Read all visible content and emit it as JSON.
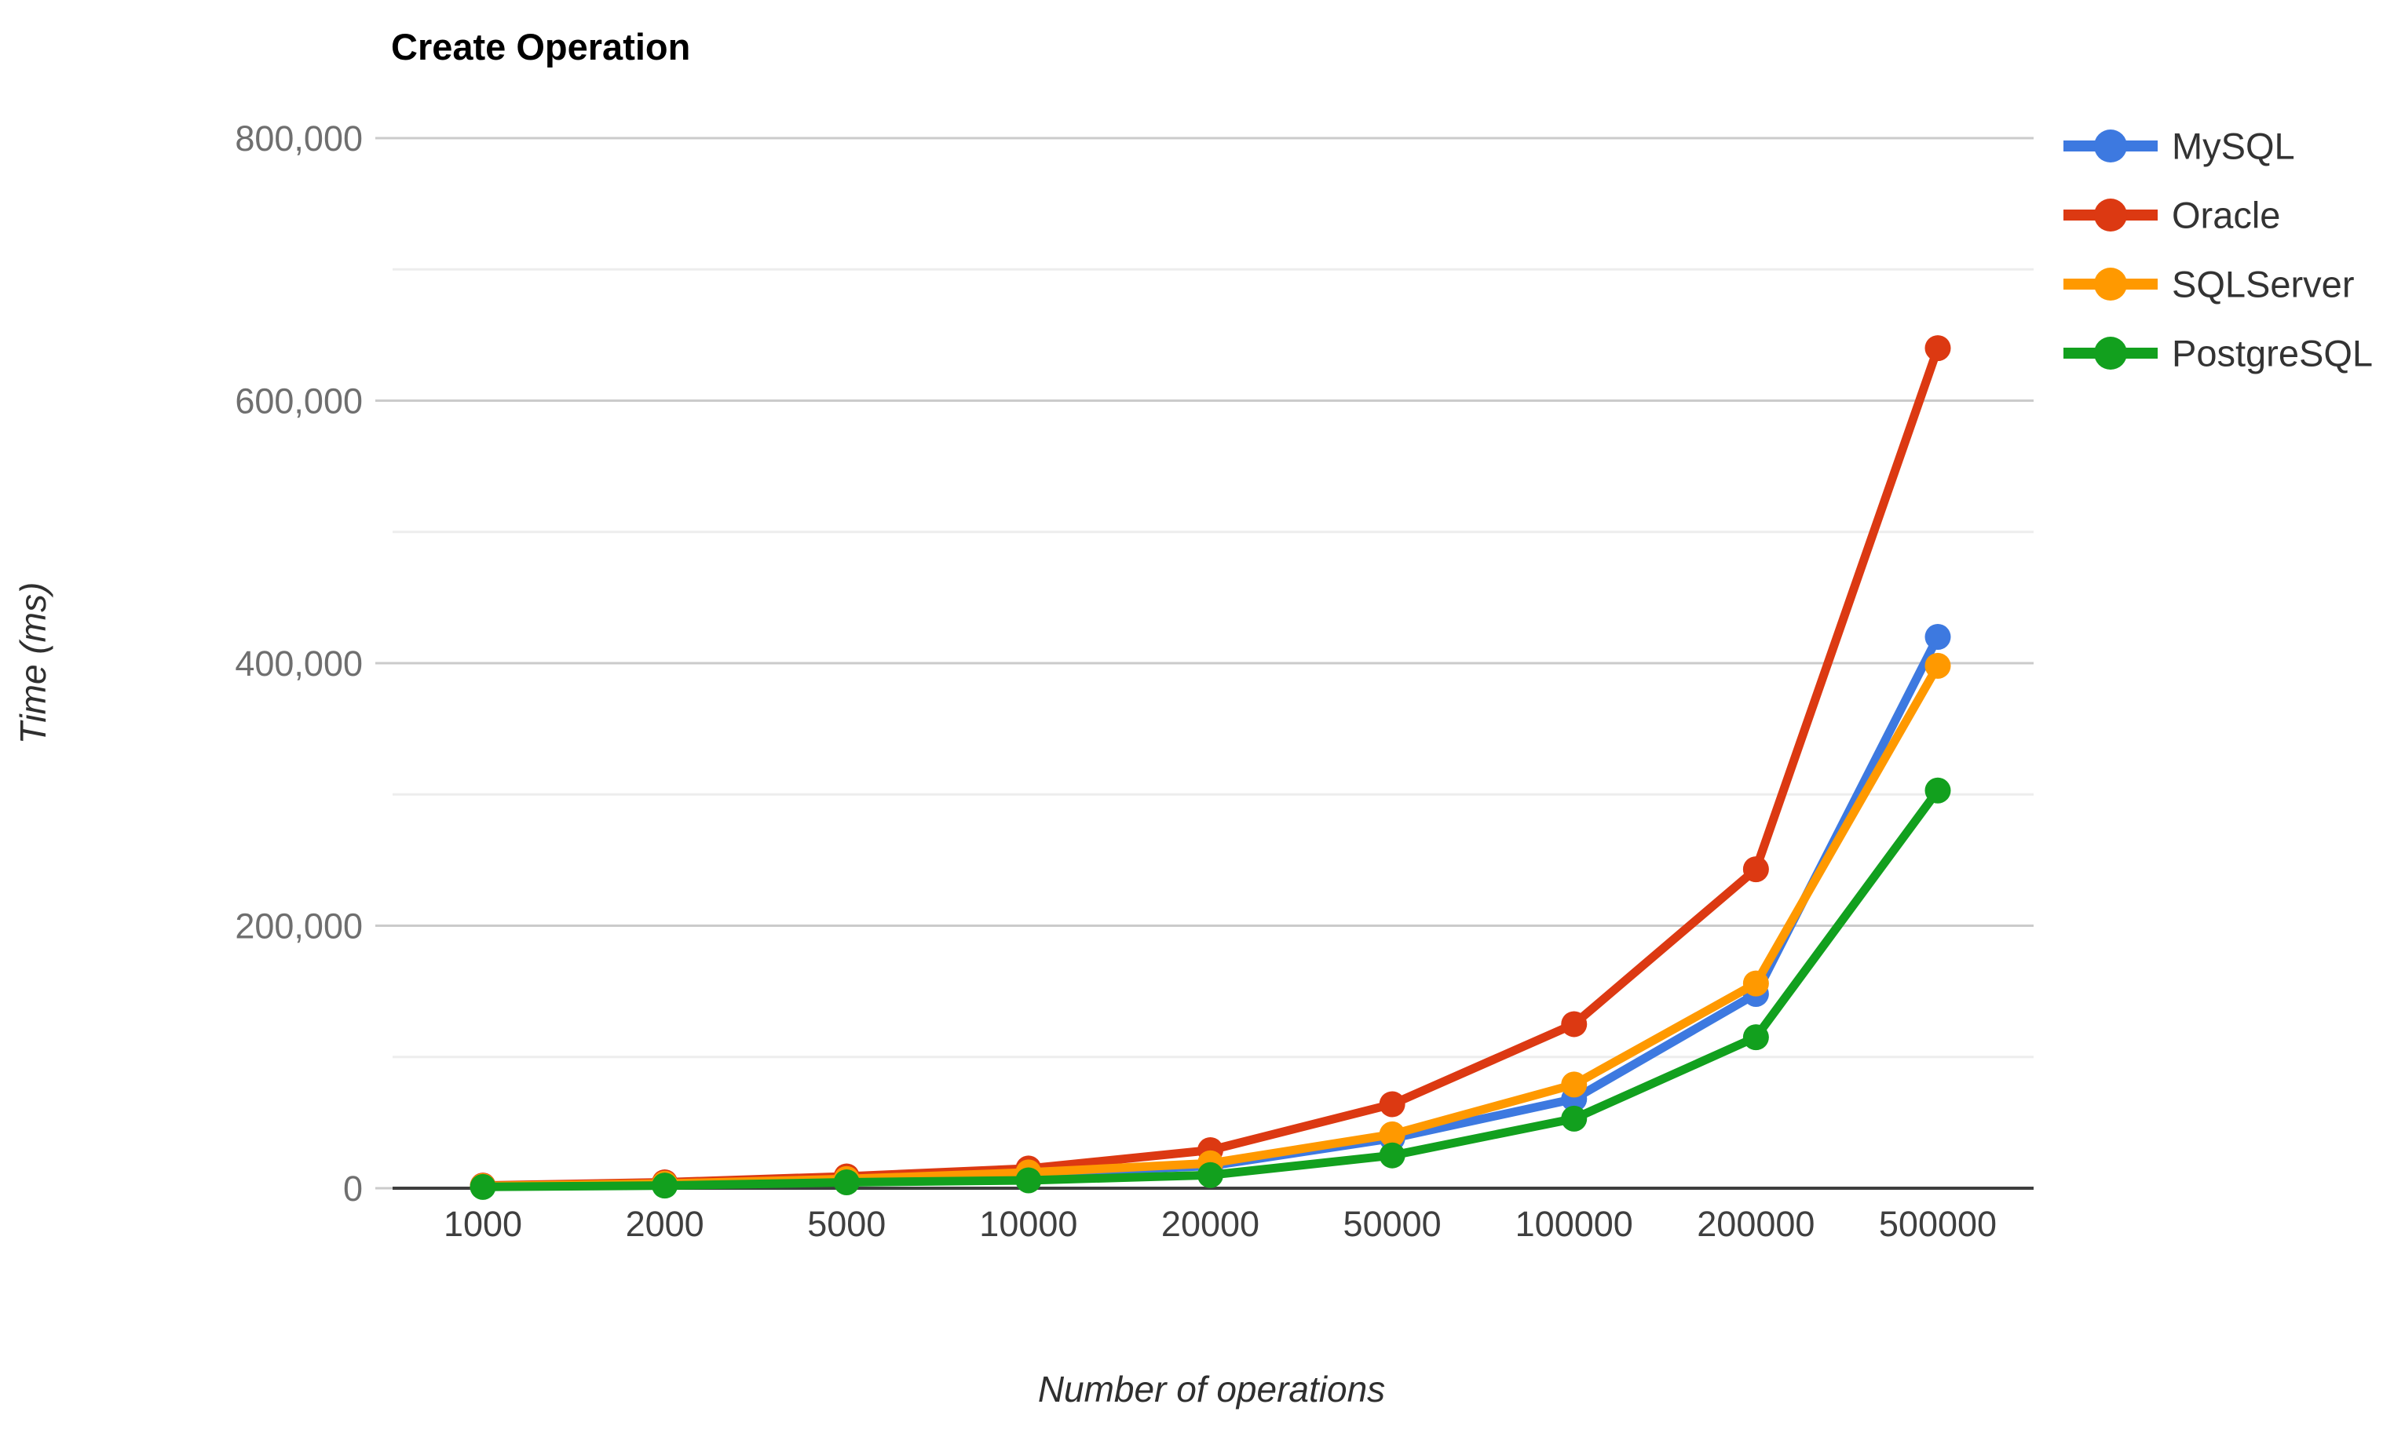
{
  "title": "Create Operation",
  "y_axis": {
    "title": "Time (ms)",
    "tick_labels": [
      "0",
      "200,000",
      "400,000",
      "600,000",
      "800,000"
    ],
    "tick_values": [
      0,
      200000,
      400000,
      600000,
      800000
    ],
    "minor_step": 100000
  },
  "x_axis": {
    "title": "Number of operations",
    "tick_labels": [
      "1000",
      "2000",
      "5000",
      "10000",
      "20000",
      "50000",
      "100000",
      "200000",
      "500000"
    ]
  },
  "colors": {
    "mysql": "#3D79E0",
    "oracle": "#DC3912",
    "sqlserver": "#FF9900",
    "postgresql": "#12A01E",
    "gridline_major": "#CBCBCB",
    "gridline_minor": "#EDEDED",
    "axis_line": "#3E3E3E",
    "y_tick_text": "#6F6F6F",
    "x_tick_text": "#3F3F3F"
  },
  "chart_data": {
    "type": "line",
    "title": "Create Operation",
    "xlabel": "Number of operations",
    "ylabel": "Time (ms)",
    "categories": [
      1000,
      2000,
      5000,
      10000,
      20000,
      50000,
      100000,
      200000,
      500000
    ],
    "x_scale": "categorical",
    "series": [
      {
        "name": "MySQL",
        "color": "#3D79E0",
        "values": [
          1200,
          2500,
          5500,
          11000,
          17000,
          38000,
          68000,
          148000,
          420000
        ]
      },
      {
        "name": "Oracle",
        "color": "#DC3912",
        "values": [
          2000,
          4500,
          9000,
          15000,
          29000,
          64000,
          125000,
          243000,
          640000
        ]
      },
      {
        "name": "SQLServer",
        "color": "#FF9900",
        "values": [
          1600,
          3500,
          7000,
          12000,
          19000,
          41000,
          79000,
          156000,
          398000
        ]
      },
      {
        "name": "PostgreSQL",
        "color": "#12A01E",
        "values": [
          1000,
          2000,
          4500,
          6000,
          10000,
          25000,
          53000,
          115000,
          303000
        ]
      }
    ],
    "ylim": [
      0,
      800000
    ],
    "grid": true,
    "marker": "circle",
    "legend_position": "right"
  }
}
